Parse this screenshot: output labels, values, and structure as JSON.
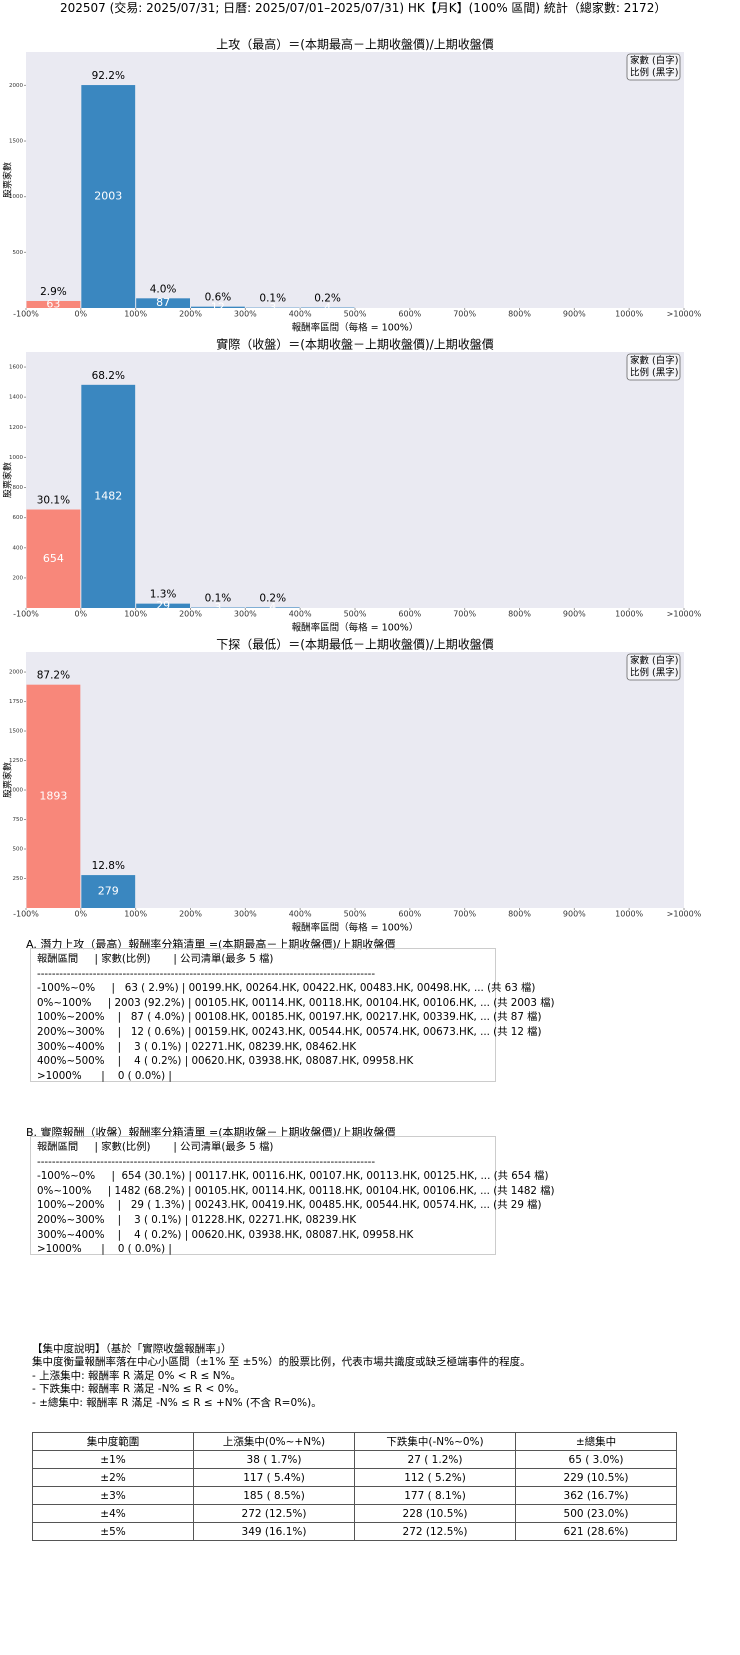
{
  "header": {
    "title": "202507 (交易: 2025/07/31; 日曆: 2025/07/01–2025/07/31) HK【月K】(100% 區間) 統計（總家數: 2172）"
  },
  "chart_data": [
    {
      "type": "histogram",
      "title": "上攻（最高）＝(本期最高－上期收盤價)/上期收盤價",
      "ylabel": "股票家數",
      "xlabel": "報酬率區間（每格 = 100%）",
      "bins": [
        -100,
        0,
        100,
        200,
        300,
        400,
        500,
        600,
        700,
        800,
        900,
        1000,
        1100
      ],
      "counts": [
        63,
        2003,
        87,
        12,
        3,
        4,
        0,
        0,
        0,
        0,
        0,
        0
      ],
      "percent_labels": [
        "2.9%",
        "92.2%",
        "4.0%",
        "0.6%",
        "0.1%",
        "0.2%",
        null,
        null,
        null,
        null,
        null,
        null
      ],
      "color": "#3a87c0",
      "negative_color": "#f8877a",
      "background": "#eaeaf2",
      "legend": [
        "家數 (白字)",
        "比例 (黑字)"
      ],
      "legend_position": "upper right",
      "xlim": [
        -100,
        1100
      ],
      "ylim": [
        0,
        2300
      ],
      "yticks": [
        500,
        1000,
        1500,
        2000
      ],
      "xticks": [
        {
          "value": -100,
          "label": "-100%"
        },
        {
          "value": 0,
          "label": "0%"
        },
        {
          "value": 100,
          "label": "100%"
        },
        {
          "value": 200,
          "label": "200%"
        },
        {
          "value": 300,
          "label": "300%"
        },
        {
          "value": 400,
          "label": "400%"
        },
        {
          "value": 500,
          "label": "500%"
        },
        {
          "value": 600,
          "label": "600%"
        },
        {
          "value": 700,
          "label": "700%"
        },
        {
          "value": 800,
          "label": "800%"
        },
        {
          "value": 900,
          "label": "900%"
        },
        {
          "value": 1000,
          "label": "1000%"
        },
        {
          "value": 1100,
          "label": ">1000%"
        }
      ]
    },
    {
      "type": "histogram",
      "title": "實際（收盤）＝(本期收盤－上期收盤價)/上期收盤價",
      "ylabel": "股票家數",
      "xlabel": "報酬率區間（每格 = 100%）",
      "bins": [
        -100,
        0,
        100,
        200,
        300,
        400,
        500,
        600,
        700,
        800,
        900,
        1000,
        1100
      ],
      "counts": [
        654,
        1482,
        29,
        3,
        4,
        0,
        0,
        0,
        0,
        0,
        0,
        0
      ],
      "percent_labels": [
        "30.1%",
        "68.2%",
        "1.3%",
        "0.1%",
        "0.2%",
        null,
        null,
        null,
        null,
        null,
        null,
        null
      ],
      "color": "#3a87c0",
      "negative_color": "#f8877a",
      "background": "#eaeaf2",
      "legend": [
        "家數 (白字)",
        "比例 (黑字)"
      ],
      "legend_position": "upper right",
      "xlim": [
        -100,
        1100
      ],
      "ylim": [
        0,
        1700
      ],
      "yticks": [
        200,
        400,
        600,
        800,
        1000,
        1200,
        1400,
        1600
      ],
      "xticks": [
        {
          "value": -100,
          "label": "-100%"
        },
        {
          "value": 0,
          "label": "0%"
        },
        {
          "value": 100,
          "label": "100%"
        },
        {
          "value": 200,
          "label": "200%"
        },
        {
          "value": 300,
          "label": "300%"
        },
        {
          "value": 400,
          "label": "400%"
        },
        {
          "value": 500,
          "label": "500%"
        },
        {
          "value": 600,
          "label": "600%"
        },
        {
          "value": 700,
          "label": "700%"
        },
        {
          "value": 800,
          "label": "800%"
        },
        {
          "value": 900,
          "label": "900%"
        },
        {
          "value": 1000,
          "label": "1000%"
        },
        {
          "value": 1100,
          "label": ">1000%"
        }
      ]
    },
    {
      "type": "histogram",
      "title": "下探（最低）＝(本期最低－上期收盤價)/上期收盤價",
      "ylabel": "股票家數",
      "xlabel": "報酬率區間（每格 = 100%）",
      "bins": [
        -100,
        0,
        100,
        200,
        300,
        400,
        500,
        600,
        700,
        800,
        900,
        1000,
        1100
      ],
      "counts": [
        1893,
        279,
        0,
        0,
        0,
        0,
        0,
        0,
        0,
        0,
        0,
        0
      ],
      "percent_labels": [
        "87.2%",
        "12.8%",
        null,
        null,
        null,
        null,
        null,
        null,
        null,
        null,
        null,
        null
      ],
      "color": "#3a87c0",
      "negative_color": "#f8877a",
      "background": "#eaeaf2",
      "legend": [
        "家數 (白字)",
        "比例 (黑字)"
      ],
      "legend_position": "upper right",
      "xlim": [
        -100,
        1100
      ],
      "ylim": [
        0,
        2170
      ],
      "yticks": [
        250,
        500,
        750,
        1000,
        1250,
        1500,
        1750,
        2000
      ],
      "xticks": [
        {
          "value": -100,
          "label": "-100%"
        },
        {
          "value": 0,
          "label": "0%"
        },
        {
          "value": 100,
          "label": "100%"
        },
        {
          "value": 200,
          "label": "200%"
        },
        {
          "value": 300,
          "label": "300%"
        },
        {
          "value": 400,
          "label": "400%"
        },
        {
          "value": 500,
          "label": "500%"
        },
        {
          "value": 600,
          "label": "600%"
        },
        {
          "value": 700,
          "label": "700%"
        },
        {
          "value": 800,
          "label": "800%"
        },
        {
          "value": 900,
          "label": "900%"
        },
        {
          "value": 1000,
          "label": "1000%"
        },
        {
          "value": 1100,
          "label": ">1000%"
        }
      ]
    }
  ],
  "list_a": {
    "title": "A. 潛力上攻（最高）報酬率分箱清單 =(本期最高－上期收盤價)/上期收盤價",
    "lines": [
      "報酬區間     | 家數(比例)       | 公司清單(最多 5 檔)",
      "-------------------------------------------------------------------------------------------",
      "-100%~0%     |   63 ( 2.9%) | 00199.HK, 00264.HK, 00422.HK, 00483.HK, 00498.HK, ... (共 63 檔)",
      "0%~100%     | 2003 (92.2%) | 00105.HK, 00114.HK, 00118.HK, 00104.HK, 00106.HK, ... (共 2003 檔)",
      "100%~200%    |   87 ( 4.0%) | 00108.HK, 00185.HK, 00197.HK, 00217.HK, 00339.HK, ... (共 87 檔)",
      "200%~300%    |   12 ( 0.6%) | 00159.HK, 00243.HK, 00544.HK, 00574.HK, 00673.HK, ... (共 12 檔)",
      "300%~400%    |    3 ( 0.1%) | 02271.HK, 08239.HK, 08462.HK",
      "400%~500%    |    4 ( 0.2%) | 00620.HK, 03938.HK, 08087.HK, 09958.HK",
      ">1000%      |    0 ( 0.0%) |"
    ]
  },
  "list_b": {
    "title": "B. 實際報酬（收盤）報酬率分箱清單 =(本期收盤－上期收盤價)/上期收盤價",
    "lines": [
      "報酬區間     | 家數(比例)       | 公司清單(最多 5 檔)",
      "-------------------------------------------------------------------------------------------",
      "-100%~0%     |  654 (30.1%) | 00117.HK, 00116.HK, 00107.HK, 00113.HK, 00125.HK, ... (共 654 檔)",
      "0%~100%     | 1482 (68.2%) | 00105.HK, 00114.HK, 00118.HK, 00104.HK, 00106.HK, ... (共 1482 檔)",
      "100%~200%    |   29 ( 1.3%) | 00243.HK, 00419.HK, 00485.HK, 00544.HK, 00574.HK, ... (共 29 檔)",
      "200%~300%    |    3 ( 0.1%) | 01228.HK, 02271.HK, 08239.HK",
      "300%~400%    |    4 ( 0.2%) | 00620.HK, 03938.HK, 08087.HK, 09958.HK",
      ">1000%      |    0 ( 0.0%) |"
    ]
  },
  "note": {
    "lines": [
      "【集中度說明】（基於「實際收盤報酬率」）",
      "集中度衡量報酬率落在中心小區間（±1% 至 ±5%）的股票比例，代表市場共識度或缺乏極端事件的程度。",
      "- 上漲集中: 報酬率 R 滿足 0% < R ≤ N%。",
      "- 下跌集中: 報酬率 R 滿足 -N% ≤ R < 0%。",
      "- ±總集中: 報酬率 R 滿足 -N% ≤ R ≤ +N% (不含 R=0%)。"
    ]
  },
  "table": {
    "header": [
      "集中度範圍",
      "上漲集中(0%~+N%)",
      "下跌集中(-N%~0%)",
      "±總集中"
    ],
    "rows": [
      [
        "±1%",
        "38 ( 1.7%)",
        "27 ( 1.2%)",
        "65 ( 3.0%)"
      ],
      [
        "±2%",
        "117 ( 5.4%)",
        "112 ( 5.2%)",
        "229 (10.5%)"
      ],
      [
        "±3%",
        "185 ( 8.5%)",
        "177 ( 8.1%)",
        "362 (16.7%)"
      ],
      [
        "±4%",
        "272 (12.5%)",
        "228 (10.5%)",
        "500 (23.0%)"
      ],
      [
        "±5%",
        "349 (16.1%)",
        "272 (12.5%)",
        "621 (28.6%)"
      ]
    ]
  }
}
